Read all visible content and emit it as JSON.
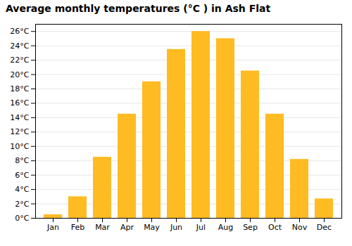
{
  "chart_data": {
    "type": "bar",
    "title": "Average monthly temperatures (°C ) in Ash Flat",
    "categories": [
      "Jan",
      "Feb",
      "Mar",
      "Apr",
      "May",
      "Jun",
      "Jul",
      "Aug",
      "Sep",
      "Oct",
      "Nov",
      "Dec"
    ],
    "values": [
      0.5,
      3.0,
      8.5,
      14.5,
      19.0,
      23.5,
      26.0,
      25.0,
      20.5,
      14.5,
      8.2,
      2.7
    ],
    "color": "#FFBB22",
    "ylim": [
      0,
      27
    ],
    "yticks": [
      {
        "value": 0,
        "label": "0°C"
      },
      {
        "value": 2,
        "label": "2°C"
      },
      {
        "value": 4,
        "label": "4°C"
      },
      {
        "value": 6,
        "label": "6°C"
      },
      {
        "value": 8,
        "label": "8°C"
      },
      {
        "value": 10,
        "label": "10°C"
      },
      {
        "value": 12,
        "label": "12°C"
      },
      {
        "value": 14,
        "label": "14°C"
      },
      {
        "value": 16,
        "label": "16°C"
      },
      {
        "value": 18,
        "label": "18°C"
      },
      {
        "value": 20,
        "label": "20°C"
      },
      {
        "value": 22,
        "label": "22°C"
      },
      {
        "value": 24,
        "label": "24°C"
      },
      {
        "value": 26,
        "label": "26°C"
      }
    ],
    "grid": true
  }
}
